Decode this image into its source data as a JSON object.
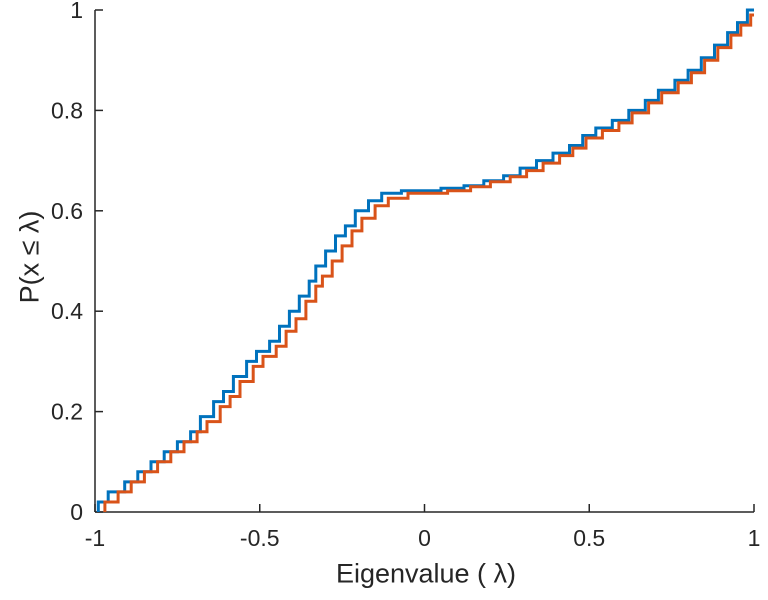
{
  "chart_data": {
    "type": "line",
    "subtype": "ecdf-step",
    "title": "",
    "xlabel": "Eigenvalue ( λ)",
    "ylabel": "P(x ≤ λ)",
    "xlim": [
      -1,
      1
    ],
    "ylim": [
      0,
      1
    ],
    "xticks": [
      -1,
      -0.5,
      0,
      0.5,
      1
    ],
    "xtick_labels": [
      "-1",
      "-0.5",
      "0",
      "0.5",
      "1"
    ],
    "yticks": [
      0,
      0.2,
      0.4,
      0.6,
      0.8,
      1
    ],
    "ytick_labels": [
      "0",
      "0.2",
      "0.4",
      "0.6",
      "0.8",
      "1"
    ],
    "grid": false,
    "legend_position": "none",
    "background": "#FFFFFF",
    "axis_color": "#262626",
    "series": [
      {
        "name": "ecdf-series-1",
        "color": "#0072BD",
        "line_width": 3,
        "x": [
          -0.99,
          -0.96,
          -0.91,
          -0.87,
          -0.83,
          -0.79,
          -0.75,
          -0.71,
          -0.68,
          -0.64,
          -0.61,
          -0.58,
          -0.54,
          -0.51,
          -0.47,
          -0.44,
          -0.41,
          -0.38,
          -0.35,
          -0.33,
          -0.3,
          -0.27,
          -0.24,
          -0.21,
          -0.17,
          -0.13,
          -0.07,
          0.05,
          0.12,
          0.18,
          0.24,
          0.29,
          0.34,
          0.39,
          0.44,
          0.48,
          0.52,
          0.57,
          0.62,
          0.67,
          0.71,
          0.76,
          0.8,
          0.84,
          0.88,
          0.92,
          0.95,
          0.98
        ],
        "y": [
          0.02,
          0.04,
          0.06,
          0.08,
          0.1,
          0.12,
          0.14,
          0.16,
          0.19,
          0.22,
          0.24,
          0.27,
          0.3,
          0.32,
          0.34,
          0.37,
          0.4,
          0.43,
          0.46,
          0.49,
          0.52,
          0.55,
          0.57,
          0.6,
          0.62,
          0.635,
          0.64,
          0.645,
          0.65,
          0.66,
          0.67,
          0.685,
          0.7,
          0.715,
          0.73,
          0.75,
          0.765,
          0.78,
          0.8,
          0.82,
          0.84,
          0.86,
          0.88,
          0.905,
          0.93,
          0.955,
          0.975,
          1.0
        ]
      },
      {
        "name": "ecdf-series-2",
        "color": "#D95319",
        "line_width": 3,
        "x": [
          -0.97,
          -0.93,
          -0.89,
          -0.85,
          -0.81,
          -0.77,
          -0.73,
          -0.69,
          -0.66,
          -0.62,
          -0.59,
          -0.56,
          -0.52,
          -0.49,
          -0.45,
          -0.42,
          -0.39,
          -0.36,
          -0.33,
          -0.31,
          -0.28,
          -0.25,
          -0.22,
          -0.19,
          -0.15,
          -0.11,
          -0.05,
          0.07,
          0.14,
          0.2,
          0.26,
          0.31,
          0.36,
          0.41,
          0.45,
          0.49,
          0.54,
          0.59,
          0.63,
          0.68,
          0.72,
          0.77,
          0.81,
          0.85,
          0.89,
          0.93,
          0.96,
          0.99
        ],
        "y": [
          0.02,
          0.04,
          0.06,
          0.08,
          0.1,
          0.12,
          0.14,
          0.16,
          0.18,
          0.21,
          0.23,
          0.26,
          0.29,
          0.31,
          0.33,
          0.36,
          0.385,
          0.42,
          0.45,
          0.47,
          0.5,
          0.53,
          0.56,
          0.585,
          0.61,
          0.625,
          0.635,
          0.64,
          0.648,
          0.658,
          0.668,
          0.68,
          0.695,
          0.71,
          0.725,
          0.745,
          0.76,
          0.775,
          0.795,
          0.815,
          0.835,
          0.855,
          0.875,
          0.9,
          0.925,
          0.95,
          0.97,
          0.99
        ]
      }
    ]
  }
}
